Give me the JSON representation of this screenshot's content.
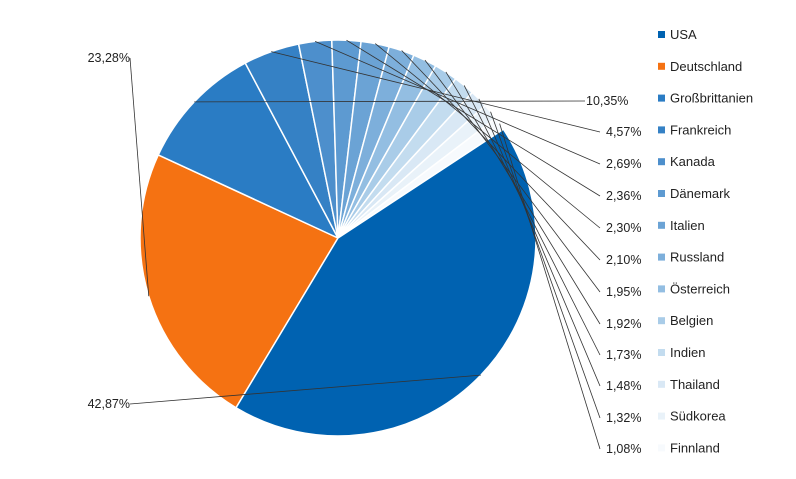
{
  "chart_data": {
    "type": "pie",
    "start_angle_deg": 211,
    "direction": "clockwise",
    "slices": [
      {
        "name": "Deutschland",
        "value": 23.28,
        "label": "23,28%",
        "color": "#F57212"
      },
      {
        "name": "Großbrittanien",
        "value": 10.35,
        "label": "10,35%",
        "color": "#2A7CC4"
      },
      {
        "name": "Frankreich",
        "value": 4.57,
        "label": "4,57%",
        "color": "#3581C5"
      },
      {
        "name": "Kanada",
        "value": 2.69,
        "label": "2,69%",
        "color": "#4D8FCC"
      },
      {
        "name": "Dänemark",
        "value": 2.36,
        "label": "2,36%",
        "color": "#5D9AD1"
      },
      {
        "name": "Italien",
        "value": 2.3,
        "label": "2,30%",
        "color": "#6BA3D5"
      },
      {
        "name": "Russland",
        "value": 2.1,
        "label": "2,10%",
        "color": "#7DAFDB"
      },
      {
        "name": "Österreich",
        "value": 1.95,
        "label": "1,95%",
        "color": "#93BEE2"
      },
      {
        "name": "Belgien",
        "value": 1.92,
        "label": "1,92%",
        "color": "#A9CCE8"
      },
      {
        "name": "Indien",
        "value": 1.73,
        "label": "1,73%",
        "color": "#C3DCEF"
      },
      {
        "name": "Thailand",
        "value": 1.48,
        "label": "1,48%",
        "color": "#D9E8F5"
      },
      {
        "name": "Südkorea",
        "value": 1.32,
        "label": "1,32%",
        "color": "#E9F2F9"
      },
      {
        "name": "Finnland",
        "value": 1.08,
        "label": "1,08%",
        "color": "#F7FAFD"
      },
      {
        "name": "USA",
        "value": 42.87,
        "label": "42,87%",
        "color": "#0062B1"
      }
    ],
    "legend": {
      "placement": "right",
      "entries": [
        {
          "name": "USA",
          "color": "#0062B1"
        },
        {
          "name": "Deutschland",
          "color": "#F57212"
        },
        {
          "name": "Großbrittanien",
          "color": "#2A7CC4"
        },
        {
          "name": "Frankreich",
          "color": "#3581C5"
        },
        {
          "name": "Kanada",
          "color": "#4D8FCC"
        },
        {
          "name": "Dänemark",
          "color": "#5D9AD1"
        },
        {
          "name": "Italien",
          "color": "#6BA3D5"
        },
        {
          "name": "Russland",
          "color": "#7DAFDB"
        },
        {
          "name": "Österreich",
          "color": "#93BEE2"
        },
        {
          "name": "Belgien",
          "color": "#A9CCE8"
        },
        {
          "name": "Indien",
          "color": "#C3DCEF"
        },
        {
          "name": "Thailand",
          "color": "#D9E8F5"
        },
        {
          "name": "Südkorea",
          "color": "#E9F2F9"
        },
        {
          "name": "Finnland",
          "color": "#F7FAFD"
        }
      ]
    }
  }
}
